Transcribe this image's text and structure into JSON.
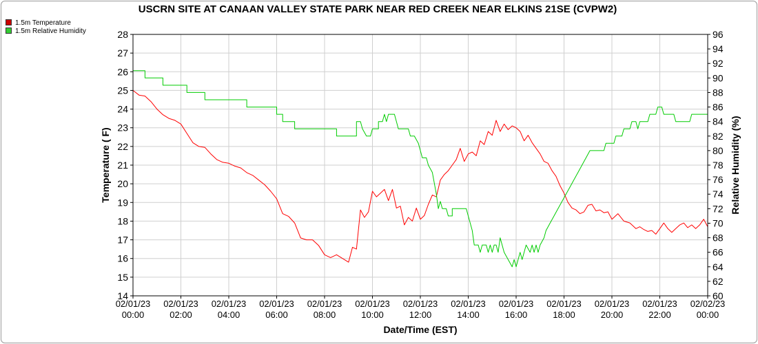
{
  "chart_data": {
    "type": "line",
    "title": "USCRN SITE AT CANAAN VALLEY STATE PARK NEAR RED CREEK NEAR ELKINS 21SE (CVPW2)",
    "xlabel": "Date/Time (EST)",
    "ylabel_left": "Temperature ( F)",
    "ylabel_right": "Relative Humidity (%)",
    "ylim_left": [
      14,
      28
    ],
    "ylim_right": [
      60,
      96
    ],
    "xlim_hours": [
      0,
      24
    ],
    "grid": true,
    "legend_position": "top-left",
    "x_ticks": [
      {
        "date": "02/01/23",
        "time": "00:00"
      },
      {
        "date": "02/01/23",
        "time": "02:00"
      },
      {
        "date": "02/01/23",
        "time": "04:00"
      },
      {
        "date": "02/01/23",
        "time": "06:00"
      },
      {
        "date": "02/01/23",
        "time": "08:00"
      },
      {
        "date": "02/01/23",
        "time": "10:00"
      },
      {
        "date": "02/01/23",
        "time": "12:00"
      },
      {
        "date": "02/01/23",
        "time": "14:00"
      },
      {
        "date": "02/01/23",
        "time": "16:00"
      },
      {
        "date": "02/01/23",
        "time": "18:00"
      },
      {
        "date": "02/01/23",
        "time": "20:00"
      },
      {
        "date": "02/01/23",
        "time": "22:00"
      },
      {
        "date": "02/02/23",
        "time": "00:00"
      }
    ],
    "y_ticks_left": [
      14,
      15,
      16,
      17,
      18,
      19,
      20,
      21,
      22,
      23,
      24,
      25,
      26,
      27,
      28
    ],
    "y_ticks_right": [
      60,
      62,
      64,
      66,
      68,
      70,
      72,
      74,
      76,
      78,
      80,
      82,
      84,
      86,
      88,
      90,
      92,
      94,
      96
    ],
    "series": [
      {
        "name": "1.5m Temperature",
        "axis": "left",
        "color": "#ff0000",
        "points": [
          [
            "02/01/23 00:00",
            25.0
          ],
          [
            "02/01/23 00:15",
            24.75
          ],
          [
            "02/01/23 00:30",
            24.7
          ],
          [
            "02/01/23 00:45",
            24.4
          ],
          [
            "02/01/23 01:00",
            24.0
          ],
          [
            "02/01/23 01:15",
            23.7
          ],
          [
            "02/01/23 01:30",
            23.5
          ],
          [
            "02/01/23 01:45",
            23.4
          ],
          [
            "02/01/23 02:00",
            23.2
          ],
          [
            "02/01/23 02:15",
            22.7
          ],
          [
            "02/01/23 02:30",
            22.2
          ],
          [
            "02/01/23 02:45",
            22.0
          ],
          [
            "02/01/23 03:00",
            21.95
          ],
          [
            "02/01/23 03:15",
            21.6
          ],
          [
            "02/01/23 03:30",
            21.3
          ],
          [
            "02/01/23 03:45",
            21.15
          ],
          [
            "02/01/23 04:00",
            21.1
          ],
          [
            "02/01/23 04:15",
            20.95
          ],
          [
            "02/01/23 04:30",
            20.85
          ],
          [
            "02/01/23 04:45",
            20.6
          ],
          [
            "02/01/23 05:00",
            20.45
          ],
          [
            "02/01/23 05:15",
            20.2
          ],
          [
            "02/01/23 05:30",
            19.95
          ],
          [
            "02/01/23 05:45",
            19.6
          ],
          [
            "02/01/23 06:00",
            19.2
          ],
          [
            "02/01/23 06:15",
            18.4
          ],
          [
            "02/01/23 06:30",
            18.25
          ],
          [
            "02/01/23 06:45",
            17.9
          ],
          [
            "02/01/23 07:00",
            17.1
          ],
          [
            "02/01/23 07:15",
            17.0
          ],
          [
            "02/01/23 07:30",
            17.0
          ],
          [
            "02/01/23 07:45",
            16.7
          ],
          [
            "02/01/23 08:00",
            16.2
          ],
          [
            "02/01/23 08:15",
            16.05
          ],
          [
            "02/01/23 08:30",
            16.2
          ],
          [
            "02/01/23 08:45",
            16.0
          ],
          [
            "02/01/23 09:00",
            15.8
          ],
          [
            "02/01/23 09:10",
            16.6
          ],
          [
            "02/01/23 09:20",
            16.5
          ],
          [
            "02/01/23 09:30",
            18.6
          ],
          [
            "02/01/23 09:40",
            18.2
          ],
          [
            "02/01/23 09:50",
            18.5
          ],
          [
            "02/01/23 10:00",
            19.6
          ],
          [
            "02/01/23 10:10",
            19.3
          ],
          [
            "02/01/23 10:20",
            19.5
          ],
          [
            "02/01/23 10:30",
            19.7
          ],
          [
            "02/01/23 10:40",
            19.1
          ],
          [
            "02/01/23 10:50",
            19.7
          ],
          [
            "02/01/23 11:00",
            18.7
          ],
          [
            "02/01/23 11:10",
            18.8
          ],
          [
            "02/01/23 11:20",
            17.8
          ],
          [
            "02/01/23 11:30",
            18.2
          ],
          [
            "02/01/23 11:40",
            18.0
          ],
          [
            "02/01/23 11:50",
            18.7
          ],
          [
            "02/01/23 12:00",
            18.1
          ],
          [
            "02/01/23 12:10",
            18.3
          ],
          [
            "02/01/23 12:20",
            18.9
          ],
          [
            "02/01/23 12:30",
            19.4
          ],
          [
            "02/01/23 12:40",
            19.3
          ],
          [
            "02/01/23 12:50",
            20.2
          ],
          [
            "02/01/23 13:00",
            20.5
          ],
          [
            "02/01/23 13:10",
            20.7
          ],
          [
            "02/01/23 13:20",
            21.0
          ],
          [
            "02/01/23 13:30",
            21.3
          ],
          [
            "02/01/23 13:40",
            21.9
          ],
          [
            "02/01/23 13:50",
            21.2
          ],
          [
            "02/01/23 14:00",
            21.6
          ],
          [
            "02/01/23 14:10",
            21.7
          ],
          [
            "02/01/23 14:20",
            21.5
          ],
          [
            "02/01/23 14:30",
            22.3
          ],
          [
            "02/01/23 14:40",
            22.1
          ],
          [
            "02/01/23 14:50",
            22.8
          ],
          [
            "02/01/23 15:00",
            22.6
          ],
          [
            "02/01/23 15:10",
            23.4
          ],
          [
            "02/01/23 15:20",
            22.8
          ],
          [
            "02/01/23 15:30",
            23.2
          ],
          [
            "02/01/23 15:40",
            22.9
          ],
          [
            "02/01/23 15:50",
            23.1
          ],
          [
            "02/01/23 16:00",
            23.0
          ],
          [
            "02/01/23 16:10",
            22.8
          ],
          [
            "02/01/23 16:20",
            22.3
          ],
          [
            "02/01/23 16:30",
            22.6
          ],
          [
            "02/01/23 16:40",
            22.2
          ],
          [
            "02/01/23 16:50",
            21.9
          ],
          [
            "02/01/23 17:00",
            21.6
          ],
          [
            "02/01/23 17:10",
            21.2
          ],
          [
            "02/01/23 17:20",
            21.1
          ],
          [
            "02/01/23 17:30",
            20.7
          ],
          [
            "02/01/23 17:40",
            20.4
          ],
          [
            "02/01/23 17:50",
            19.9
          ],
          [
            "02/01/23 18:00",
            19.5
          ],
          [
            "02/01/23 18:10",
            19.0
          ],
          [
            "02/01/23 18:20",
            18.7
          ],
          [
            "02/01/23 18:30",
            18.6
          ],
          [
            "02/01/23 18:40",
            18.4
          ],
          [
            "02/01/23 18:50",
            18.5
          ],
          [
            "02/01/23 19:00",
            18.85
          ],
          [
            "02/01/23 19:10",
            18.9
          ],
          [
            "02/01/23 19:20",
            18.55
          ],
          [
            "02/01/23 19:30",
            18.6
          ],
          [
            "02/01/23 19:40",
            18.45
          ],
          [
            "02/01/23 19:50",
            18.5
          ],
          [
            "02/01/23 20:00",
            18.1
          ],
          [
            "02/01/23 20:15",
            18.4
          ],
          [
            "02/01/23 20:30",
            18.0
          ],
          [
            "02/01/23 20:45",
            17.9
          ],
          [
            "02/01/23 21:00",
            17.6
          ],
          [
            "02/01/23 21:10",
            17.7
          ],
          [
            "02/01/23 21:20",
            17.55
          ],
          [
            "02/01/23 21:30",
            17.45
          ],
          [
            "02/01/23 21:40",
            17.5
          ],
          [
            "02/01/23 21:50",
            17.3
          ],
          [
            "02/01/23 22:00",
            17.6
          ],
          [
            "02/01/23 22:10",
            17.9
          ],
          [
            "02/01/23 22:20",
            17.6
          ],
          [
            "02/01/23 22:30",
            17.4
          ],
          [
            "02/01/23 22:40",
            17.6
          ],
          [
            "02/01/23 22:50",
            17.8
          ],
          [
            "02/01/23 23:00",
            17.9
          ],
          [
            "02/01/23 23:10",
            17.65
          ],
          [
            "02/01/23 23:20",
            17.8
          ],
          [
            "02/01/23 23:30",
            17.6
          ],
          [
            "02/01/23 23:40",
            17.8
          ],
          [
            "02/01/23 23:50",
            18.1
          ],
          [
            "02/02/23 00:00",
            17.7
          ]
        ]
      },
      {
        "name": "1.5m Relative Humidity",
        "axis": "right",
        "color": "#00cc00",
        "points": [
          [
            "02/01/23 00:00",
            91
          ],
          [
            "02/01/23 00:30",
            91
          ],
          [
            "02/01/23 00:30",
            90
          ],
          [
            "02/01/23 01:15",
            90
          ],
          [
            "02/01/23 01:15",
            89
          ],
          [
            "02/01/23 02:15",
            89
          ],
          [
            "02/01/23 02:15",
            88
          ],
          [
            "02/01/23 03:00",
            88
          ],
          [
            "02/01/23 03:00",
            87
          ],
          [
            "02/01/23 04:45",
            87
          ],
          [
            "02/01/23 04:45",
            86
          ],
          [
            "02/01/23 06:00",
            86
          ],
          [
            "02/01/23 06:00",
            85
          ],
          [
            "02/01/23 06:15",
            85
          ],
          [
            "02/01/23 06:15",
            84
          ],
          [
            "02/01/23 06:45",
            84
          ],
          [
            "02/01/23 06:45",
            83
          ],
          [
            "02/01/23 08:15",
            83
          ],
          [
            "02/01/23 08:30",
            83
          ],
          [
            "02/01/23 08:30",
            82
          ],
          [
            "02/01/23 09:20",
            82
          ],
          [
            "02/01/23 09:20",
            84
          ],
          [
            "02/01/23 09:30",
            84
          ],
          [
            "02/01/23 09:35",
            83
          ],
          [
            "02/01/23 09:45",
            82
          ],
          [
            "02/01/23 09:55",
            82
          ],
          [
            "02/01/23 10:00",
            83
          ],
          [
            "02/01/23 10:15",
            83
          ],
          [
            "02/01/23 10:15",
            84
          ],
          [
            "02/01/23 10:25",
            84
          ],
          [
            "02/01/23 10:30",
            85
          ],
          [
            "02/01/23 10:35",
            84
          ],
          [
            "02/01/23 10:40",
            85
          ],
          [
            "02/01/23 10:55",
            85
          ],
          [
            "02/01/23 11:00",
            84
          ],
          [
            "02/01/23 11:05",
            83
          ],
          [
            "02/01/23 11:30",
            83
          ],
          [
            "02/01/23 11:35",
            82
          ],
          [
            "02/01/23 11:45",
            82
          ],
          [
            "02/01/23 11:55",
            81
          ],
          [
            "02/01/23 12:05",
            79
          ],
          [
            "02/01/23 12:15",
            79
          ],
          [
            "02/01/23 12:20",
            78
          ],
          [
            "02/01/23 12:30",
            77
          ],
          [
            "02/01/23 12:40",
            74
          ],
          [
            "02/01/23 12:45",
            72
          ],
          [
            "02/01/23 12:50",
            73
          ],
          [
            "02/01/23 12:55",
            72
          ],
          [
            "02/01/23 13:05",
            72
          ],
          [
            "02/01/23 13:10",
            71
          ],
          [
            "02/01/23 13:20",
            71
          ],
          [
            "02/01/23 13:20",
            72
          ],
          [
            "02/01/23 13:55",
            72
          ],
          [
            "02/01/23 14:00",
            71
          ],
          [
            "02/01/23 14:05",
            70
          ],
          [
            "02/01/23 14:10",
            69
          ],
          [
            "02/01/23 14:15",
            67
          ],
          [
            "02/01/23 14:25",
            67
          ],
          [
            "02/01/23 14:30",
            66
          ],
          [
            "02/01/23 14:35",
            67
          ],
          [
            "02/01/23 14:45",
            67
          ],
          [
            "02/01/23 14:50",
            66
          ],
          [
            "02/01/23 14:55",
            67
          ],
          [
            "02/01/23 15:00",
            66
          ],
          [
            "02/01/23 15:05",
            67
          ],
          [
            "02/01/23 15:10",
            67
          ],
          [
            "02/01/23 15:15",
            66
          ],
          [
            "02/01/23 15:20",
            68
          ],
          [
            "02/01/23 15:25",
            67
          ],
          [
            "02/01/23 15:30",
            66
          ],
          [
            "02/01/23 15:40",
            65
          ],
          [
            "02/01/23 15:50",
            64
          ],
          [
            "02/01/23 15:55",
            65
          ],
          [
            "02/01/23 16:00",
            64
          ],
          [
            "02/01/23 16:05",
            65
          ],
          [
            "02/01/23 16:10",
            66
          ],
          [
            "02/01/23 16:15",
            65
          ],
          [
            "02/01/23 16:20",
            66
          ],
          [
            "02/01/23 16:25",
            67
          ],
          [
            "02/01/23 16:35",
            66
          ],
          [
            "02/01/23 16:40",
            67
          ],
          [
            "02/01/23 16:45",
            66
          ],
          [
            "02/01/23 16:50",
            67
          ],
          [
            "02/01/23 16:55",
            66
          ],
          [
            "02/01/23 17:00",
            67
          ],
          [
            "02/01/23 17:10",
            68
          ],
          [
            "02/01/23 17:15",
            69
          ],
          [
            "02/01/23 17:25",
            70
          ],
          [
            "02/01/23 17:35",
            71
          ],
          [
            "02/01/23 17:45",
            72
          ],
          [
            "02/01/23 17:55",
            73
          ],
          [
            "02/01/23 18:05",
            74
          ],
          [
            "02/01/23 18:15",
            75
          ],
          [
            "02/01/23 18:25",
            76
          ],
          [
            "02/01/23 18:35",
            77
          ],
          [
            "02/01/23 18:45",
            78
          ],
          [
            "02/01/23 18:55",
            79
          ],
          [
            "02/01/23 19:05",
            80
          ],
          [
            "02/01/23 19:40",
            80
          ],
          [
            "02/01/23 19:45",
            81
          ],
          [
            "02/01/23 20:05",
            81
          ],
          [
            "02/01/23 20:10",
            82
          ],
          [
            "02/01/23 20:25",
            82
          ],
          [
            "02/01/23 20:30",
            83
          ],
          [
            "02/01/23 20:45",
            83
          ],
          [
            "02/01/23 20:50",
            84
          ],
          [
            "02/01/23 21:00",
            84
          ],
          [
            "02/01/23 21:05",
            83
          ],
          [
            "02/01/23 21:10",
            84
          ],
          [
            "02/01/23 21:30",
            84
          ],
          [
            "02/01/23 21:35",
            85
          ],
          [
            "02/01/23 21:50",
            85
          ],
          [
            "02/01/23 21:55",
            86
          ],
          [
            "02/01/23 22:05",
            86
          ],
          [
            "02/01/23 22:10",
            85
          ],
          [
            "02/01/23 22:35",
            85
          ],
          [
            "02/01/23 22:40",
            84
          ],
          [
            "02/01/23 23:15",
            84
          ],
          [
            "02/01/23 23:20",
            85
          ],
          [
            "02/02/23 00:00",
            85
          ]
        ]
      }
    ]
  }
}
